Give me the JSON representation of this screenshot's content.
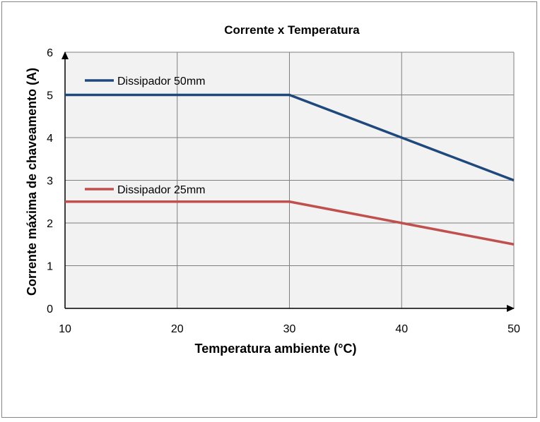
{
  "chart_data": {
    "type": "line",
    "title": "Corrente x Temperatura",
    "xlabel": "Temperatura ambiente (°C)",
    "ylabel": "Corrente máxima de chaveamento (A)",
    "xlim": [
      10,
      50
    ],
    "ylim": [
      0,
      6
    ],
    "xticks": [
      10,
      20,
      30,
      40,
      50
    ],
    "yticks": [
      0,
      1,
      2,
      3,
      4,
      5,
      6
    ],
    "grid": true,
    "plot_background": "#f2f2f2",
    "grid_color": "#7f7f7f",
    "series": [
      {
        "name": "Dissipador 50mm",
        "color": "#1f497d",
        "x": [
          10,
          30,
          40,
          50
        ],
        "y": [
          5,
          5,
          4,
          3
        ]
      },
      {
        "name": "Dissipador 25mm",
        "color": "#c0504d",
        "x": [
          10,
          30,
          40,
          50
        ],
        "y": [
          2.5,
          2.5,
          2,
          1.5
        ]
      }
    ]
  }
}
